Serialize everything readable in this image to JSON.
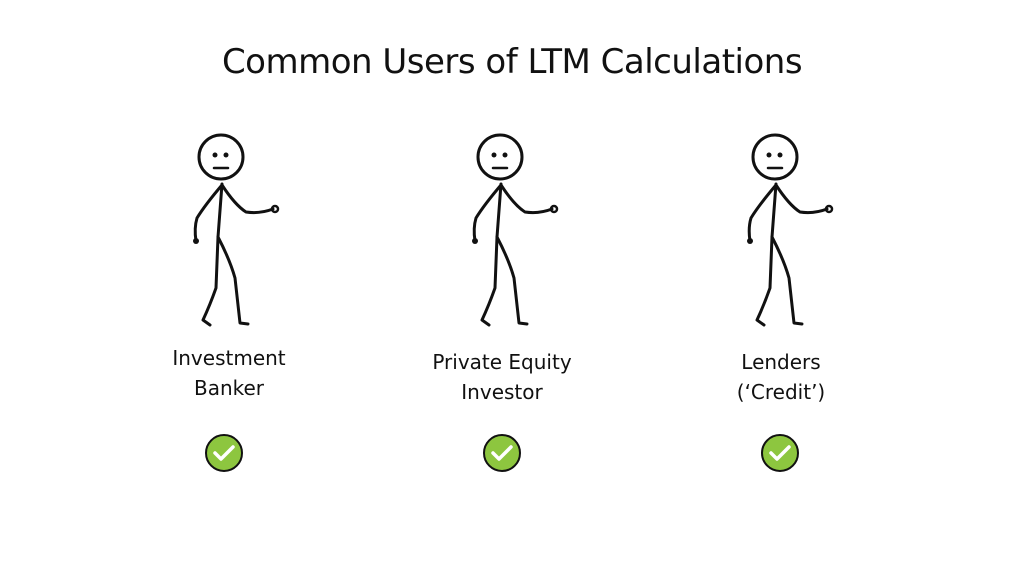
{
  "title": "Common Users of LTM Calculations",
  "colors": {
    "check_fill": "#8dc63f",
    "check_stroke": "#111111"
  },
  "users": [
    {
      "line1": "Investment",
      "line2": "Banker",
      "icon": "stick-figure-icon",
      "check": "checkmark-icon"
    },
    {
      "line1": "Private Equity",
      "line2": "Investor",
      "icon": "stick-figure-icon",
      "check": "checkmark-icon"
    },
    {
      "line1": "Lenders",
      "line2": "(‘Credit’)",
      "icon": "stick-figure-icon",
      "check": "checkmark-icon"
    }
  ]
}
